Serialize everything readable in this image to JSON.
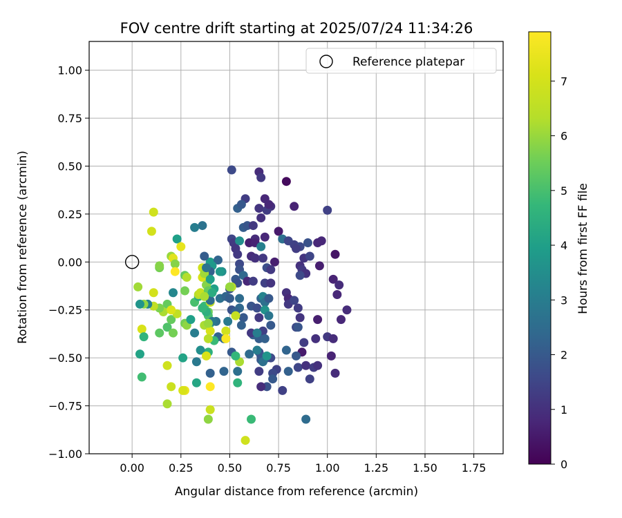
{
  "chart_data": {
    "type": "scatter",
    "title": "FOV centre drift starting at 2025/07/24 11:34:26",
    "xlabel": "Angular distance from reference (arcmin)",
    "ylabel": "Rotation from reference (arcmin)",
    "xlim": [
      -0.22,
      1.9
    ],
    "ylim": [
      -1.0,
      1.15
    ],
    "xticks": [
      0.0,
      0.25,
      0.5,
      0.75,
      1.0,
      1.25,
      1.5,
      1.75
    ],
    "xtick_labels": [
      "0.00",
      "0.25",
      "0.50",
      "0.75",
      "1.00",
      "1.25",
      "1.50",
      "1.75"
    ],
    "yticks": [
      1.0,
      0.75,
      0.5,
      0.25,
      0.0,
      -0.25,
      -0.5,
      -0.75,
      -1.0
    ],
    "ytick_labels": [
      "1.00",
      "0.75",
      "0.50",
      "0.25",
      "0.00",
      "−0.25",
      "−0.50",
      "−0.75",
      "−1.00"
    ],
    "grid": true,
    "legend": {
      "placement": "top-right",
      "entries": [
        {
          "label": "Reference platepar",
          "marker": "open-circle"
        }
      ]
    },
    "reference": {
      "x": 0.0,
      "y": 0.0
    },
    "colorbar": {
      "label": "Hours from first FF file",
      "range": [
        0,
        7.9
      ],
      "ticks": [
        0,
        1,
        2,
        3,
        4,
        5,
        6,
        7
      ],
      "colormap": "viridis"
    },
    "points": [
      [
        0.51,
        0.48,
        1.6
      ],
      [
        0.65,
        0.47,
        0.9
      ],
      [
        0.66,
        0.44,
        1.2
      ],
      [
        0.79,
        0.42,
        0.2
      ],
      [
        0.58,
        0.33,
        1.3
      ],
      [
        0.68,
        0.33,
        0.8
      ],
      [
        0.71,
        0.29,
        1.0
      ],
      [
        0.83,
        0.29,
        0.7
      ],
      [
        0.54,
        0.28,
        2.2
      ],
      [
        0.56,
        0.3,
        2.0
      ],
      [
        0.65,
        0.28,
        1.1
      ],
      [
        0.69,
        0.27,
        1.3
      ],
      [
        0.7,
        0.3,
        0.8
      ],
      [
        1.0,
        0.27,
        1.4
      ],
      [
        0.66,
        0.23,
        1.0
      ],
      [
        0.57,
        0.18,
        2.1
      ],
      [
        0.59,
        0.19,
        1.9
      ],
      [
        0.62,
        0.19,
        1.2
      ],
      [
        0.36,
        0.19,
        2.7
      ],
      [
        0.32,
        0.18,
        3.0
      ],
      [
        0.75,
        0.16,
        0.5
      ],
      [
        0.77,
        0.12,
        2.6
      ],
      [
        0.68,
        0.13,
        0.8
      ],
      [
        0.63,
        0.12,
        0.9
      ],
      [
        0.51,
        0.12,
        1.5
      ],
      [
        0.52,
        0.1,
        1.2
      ],
      [
        0.55,
        0.11,
        3.5
      ],
      [
        0.6,
        0.1,
        0.6
      ],
      [
        0.63,
        0.1,
        0.7
      ],
      [
        0.66,
        0.08,
        3.1
      ],
      [
        0.8,
        0.11,
        1.5
      ],
      [
        0.83,
        0.09,
        1.4
      ],
      [
        0.86,
        0.08,
        1.6
      ],
      [
        0.9,
        0.1,
        1.8
      ],
      [
        0.95,
        0.1,
        0.8
      ],
      [
        0.97,
        0.11,
        0.8
      ],
      [
        0.53,
        0.07,
        1.1
      ],
      [
        0.54,
        0.04,
        1.2
      ],
      [
        0.61,
        0.03,
        0.9
      ],
      [
        0.63,
        0.02,
        1.0
      ],
      [
        0.67,
        0.02,
        1.2
      ],
      [
        0.73,
        0.0,
        0.6
      ],
      [
        0.84,
        0.07,
        1.3
      ],
      [
        0.88,
        0.02,
        1.1
      ],
      [
        0.91,
        0.03,
        1.5
      ],
      [
        1.04,
        0.04,
        0.4
      ],
      [
        0.96,
        -0.02,
        0.6
      ],
      [
        0.86,
        -0.02,
        1.0
      ],
      [
        0.87,
        -0.04,
        1.2
      ],
      [
        0.89,
        -0.06,
        1.0
      ],
      [
        0.86,
        -0.07,
        1.6
      ],
      [
        0.69,
        -0.03,
        1.7
      ],
      [
        0.71,
        -0.04,
        1.2
      ],
      [
        0.55,
        -0.01,
        1.6
      ],
      [
        0.55,
        -0.04,
        1.8
      ],
      [
        0.57,
        -0.07,
        2.4
      ],
      [
        0.53,
        -0.09,
        2.0
      ],
      [
        0.54,
        -0.11,
        1.8
      ],
      [
        0.59,
        -0.1,
        0.8
      ],
      [
        0.62,
        -0.1,
        1.3
      ],
      [
        0.68,
        -0.11,
        1.4
      ],
      [
        0.71,
        -0.11,
        1.1
      ],
      [
        0.4,
        0.0,
        3.9
      ],
      [
        0.44,
        0.01,
        2.3
      ],
      [
        0.37,
        0.03,
        2.1
      ],
      [
        0.41,
        -0.02,
        3.8
      ],
      [
        0.46,
        -0.05,
        3.5
      ],
      [
        0.4,
        -0.05,
        2.2
      ],
      [
        0.39,
        -0.1,
        4.3
      ],
      [
        0.42,
        -0.14,
        4.0
      ],
      [
        0.45,
        -0.19,
        2.6
      ],
      [
        0.48,
        -0.18,
        2.3
      ],
      [
        0.5,
        -0.14,
        1.8
      ],
      [
        0.5,
        -0.19,
        2.1
      ],
      [
        0.51,
        -0.25,
        1.8
      ],
      [
        0.55,
        -0.19,
        2.5
      ],
      [
        0.55,
        -0.24,
        2.4
      ],
      [
        0.53,
        -0.26,
        2.2
      ],
      [
        0.57,
        -0.29,
        2.0
      ],
      [
        0.61,
        -0.23,
        1.9
      ],
      [
        0.64,
        -0.24,
        1.7
      ],
      [
        0.66,
        -0.19,
        2.3
      ],
      [
        0.67,
        -0.18,
        3.2
      ],
      [
        0.68,
        -0.21,
        2.6
      ],
      [
        0.68,
        -0.25,
        3.6
      ],
      [
        0.7,
        -0.19,
        2.0
      ],
      [
        0.7,
        -0.28,
        2.8
      ],
      [
        0.71,
        -0.33,
        2.0
      ],
      [
        0.65,
        -0.29,
        1.2
      ],
      [
        0.67,
        -0.36,
        1.4
      ],
      [
        0.65,
        -0.4,
        2.1
      ],
      [
        0.68,
        -0.4,
        2.2
      ],
      [
        0.62,
        -0.38,
        2.2
      ],
      [
        0.56,
        -0.33,
        2.2
      ],
      [
        0.61,
        -0.37,
        1.2
      ],
      [
        0.79,
        -0.16,
        1.0
      ],
      [
        0.8,
        -0.19,
        0.8
      ],
      [
        0.8,
        -0.22,
        1.2
      ],
      [
        0.83,
        -0.2,
        1.5
      ],
      [
        0.85,
        -0.24,
        1.3
      ],
      [
        0.86,
        -0.29,
        1.1
      ],
      [
        0.84,
        -0.34,
        1.6
      ],
      [
        0.85,
        -0.34,
        1.9
      ],
      [
        0.88,
        -0.42,
        1.3
      ],
      [
        0.95,
        -0.3,
        0.6
      ],
      [
        1.03,
        -0.09,
        0.7
      ],
      [
        1.05,
        -0.17,
        0.8
      ],
      [
        1.06,
        -0.12,
        0.9
      ],
      [
        1.07,
        -0.3,
        0.8
      ],
      [
        1.1,
        -0.25,
        0.9
      ],
      [
        1.0,
        -0.39,
        1.2
      ],
      [
        1.03,
        -0.4,
        0.9
      ],
      [
        0.94,
        -0.4,
        1.0
      ],
      [
        1.02,
        -0.49,
        0.7
      ],
      [
        1.04,
        -0.58,
        0.9
      ],
      [
        0.87,
        -0.47,
        0.5
      ],
      [
        0.84,
        -0.49,
        2.0
      ],
      [
        0.79,
        -0.46,
        2.3
      ],
      [
        0.85,
        -0.55,
        1.5
      ],
      [
        0.89,
        -0.54,
        1.0
      ],
      [
        0.93,
        -0.55,
        1.3
      ],
      [
        0.95,
        -0.54,
        1.0
      ],
      [
        0.91,
        -0.61,
        1.4
      ],
      [
        0.8,
        -0.57,
        2.2
      ],
      [
        0.74,
        -0.56,
        1.4
      ],
      [
        0.72,
        -0.58,
        1.6
      ],
      [
        0.72,
        -0.61,
        2.0
      ],
      [
        0.69,
        -0.5,
        2.3
      ],
      [
        0.71,
        -0.5,
        1.6
      ],
      [
        0.65,
        -0.47,
        1.6
      ],
      [
        0.66,
        -0.49,
        1.9
      ],
      [
        0.66,
        -0.51,
        2.0
      ],
      [
        0.65,
        -0.57,
        1.3
      ],
      [
        0.64,
        -0.46,
        3.0
      ],
      [
        0.67,
        -0.52,
        2.6
      ],
      [
        0.69,
        -0.49,
        3.7
      ],
      [
        0.64,
        -0.37,
        3.0
      ],
      [
        0.6,
        -0.48,
        2.5
      ],
      [
        0.51,
        -0.47,
        2.0
      ],
      [
        0.47,
        -0.57,
        2.3
      ],
      [
        0.54,
        -0.57,
        2.6
      ],
      [
        0.69,
        -0.65,
        1.8
      ],
      [
        0.66,
        -0.65,
        0.9
      ],
      [
        0.77,
        -0.67,
        1.4
      ],
      [
        0.89,
        -0.82,
        2.5
      ],
      [
        0.61,
        -0.82,
        4.8
      ],
      [
        0.58,
        -0.93,
        6.9
      ],
      [
        0.54,
        -0.63,
        4.6
      ],
      [
        0.55,
        -0.52,
        6.2
      ],
      [
        0.53,
        -0.49,
        4.7
      ],
      [
        0.53,
        -0.28,
        6.7
      ],
      [
        0.51,
        -0.13,
        6.4
      ],
      [
        0.5,
        -0.13,
        6.0
      ],
      [
        0.49,
        -0.31,
        2.9
      ],
      [
        0.47,
        -0.4,
        2.4
      ],
      [
        0.44,
        -0.39,
        2.3
      ],
      [
        0.43,
        -0.31,
        2.6
      ],
      [
        0.42,
        -0.41,
        4.8
      ],
      [
        0.48,
        -0.36,
        6.9
      ],
      [
        0.48,
        -0.4,
        7.8
      ],
      [
        0.4,
        -0.58,
        2.2
      ],
      [
        0.4,
        -0.65,
        7.9
      ],
      [
        0.4,
        -0.77,
        6.8
      ],
      [
        0.39,
        -0.82,
        5.9
      ],
      [
        0.39,
        -0.47,
        4.5
      ],
      [
        0.35,
        -0.46,
        3.5
      ],
      [
        0.38,
        -0.49,
        7.1
      ],
      [
        0.33,
        -0.52,
        2.9
      ],
      [
        0.33,
        -0.63,
        4.2
      ],
      [
        0.26,
        -0.5,
        4.1
      ],
      [
        0.27,
        -0.67,
        7.5
      ],
      [
        0.26,
        -0.67,
        7.1
      ],
      [
        0.2,
        -0.65,
        6.8
      ],
      [
        0.18,
        -0.54,
        6.9
      ],
      [
        0.18,
        -0.74,
        6.2
      ],
      [
        0.05,
        -0.6,
        4.9
      ],
      [
        0.04,
        -0.48,
        4.1
      ],
      [
        0.05,
        -0.35,
        7.1
      ],
      [
        0.06,
        -0.39,
        4.6
      ],
      [
        0.14,
        -0.37,
        5.3
      ],
      [
        0.18,
        -0.34,
        5.1
      ],
      [
        0.21,
        -0.37,
        5.6
      ],
      [
        0.2,
        -0.3,
        5.4
      ],
      [
        0.23,
        -0.27,
        6.6
      ],
      [
        0.18,
        -0.22,
        5.4
      ],
      [
        0.16,
        -0.26,
        6.2
      ],
      [
        0.14,
        -0.24,
        5.7
      ],
      [
        0.11,
        -0.23,
        6.6
      ],
      [
        0.08,
        -0.22,
        3.2
      ],
      [
        0.06,
        -0.22,
        5.9
      ],
      [
        0.04,
        -0.22,
        3.7
      ],
      [
        0.03,
        -0.13,
        6.1
      ],
      [
        0.11,
        -0.16,
        7.0
      ],
      [
        0.14,
        -0.03,
        5.6
      ],
      [
        0.14,
        -0.02,
        5.8
      ],
      [
        0.1,
        0.16,
        7.0
      ],
      [
        0.11,
        0.26,
        6.9
      ],
      [
        0.2,
        0.03,
        6.0
      ],
      [
        0.21,
        0.02,
        7.3
      ],
      [
        0.22,
        -0.01,
        5.8
      ],
      [
        0.22,
        -0.05,
        7.9
      ],
      [
        0.21,
        -0.16,
        3.3
      ],
      [
        0.2,
        -0.25,
        7.2
      ],
      [
        0.23,
        0.12,
        4.0
      ],
      [
        0.25,
        0.08,
        7.4
      ],
      [
        0.27,
        -0.07,
        5.4
      ],
      [
        0.28,
        -0.08,
        6.3
      ],
      [
        0.27,
        -0.15,
        5.6
      ],
      [
        0.27,
        -0.32,
        5.6
      ],
      [
        0.28,
        -0.33,
        5.9
      ],
      [
        0.3,
        -0.3,
        4.0
      ],
      [
        0.32,
        -0.37,
        3.0
      ],
      [
        0.32,
        -0.21,
        5.0
      ],
      [
        0.34,
        -0.18,
        4.3
      ],
      [
        0.34,
        -0.17,
        6.4
      ],
      [
        0.35,
        -0.16,
        6.7
      ],
      [
        0.36,
        -0.08,
        7.1
      ],
      [
        0.36,
        -0.03,
        6.9
      ],
      [
        0.37,
        -0.06,
        6.1
      ],
      [
        0.37,
        -0.23,
        4.8
      ],
      [
        0.38,
        -0.12,
        5.8
      ],
      [
        0.39,
        -0.15,
        5.4
      ],
      [
        0.4,
        -0.21,
        6.6
      ],
      [
        0.39,
        -0.26,
        5.5
      ],
      [
        0.39,
        -0.28,
        5.0
      ],
      [
        0.4,
        -0.32,
        5.1
      ],
      [
        0.37,
        -0.33,
        6.2
      ],
      [
        0.4,
        -0.36,
        7.1
      ],
      [
        0.39,
        -0.4,
        6.4
      ],
      [
        0.41,
        -0.31,
        2.9
      ],
      [
        0.4,
        -0.2,
        2.5
      ],
      [
        0.38,
        -0.03,
        2.7
      ],
      [
        0.45,
        -0.05,
        3.8
      ],
      [
        0.4,
        -0.09,
        4.0
      ],
      [
        0.41,
        -0.16,
        4.4
      ],
      [
        0.37,
        -0.18,
        6.2
      ],
      [
        0.38,
        -0.26,
        4.5
      ],
      [
        0.36,
        -0.24,
        4.7
      ],
      [
        0.39,
        -0.32,
        6.0
      ]
    ]
  }
}
